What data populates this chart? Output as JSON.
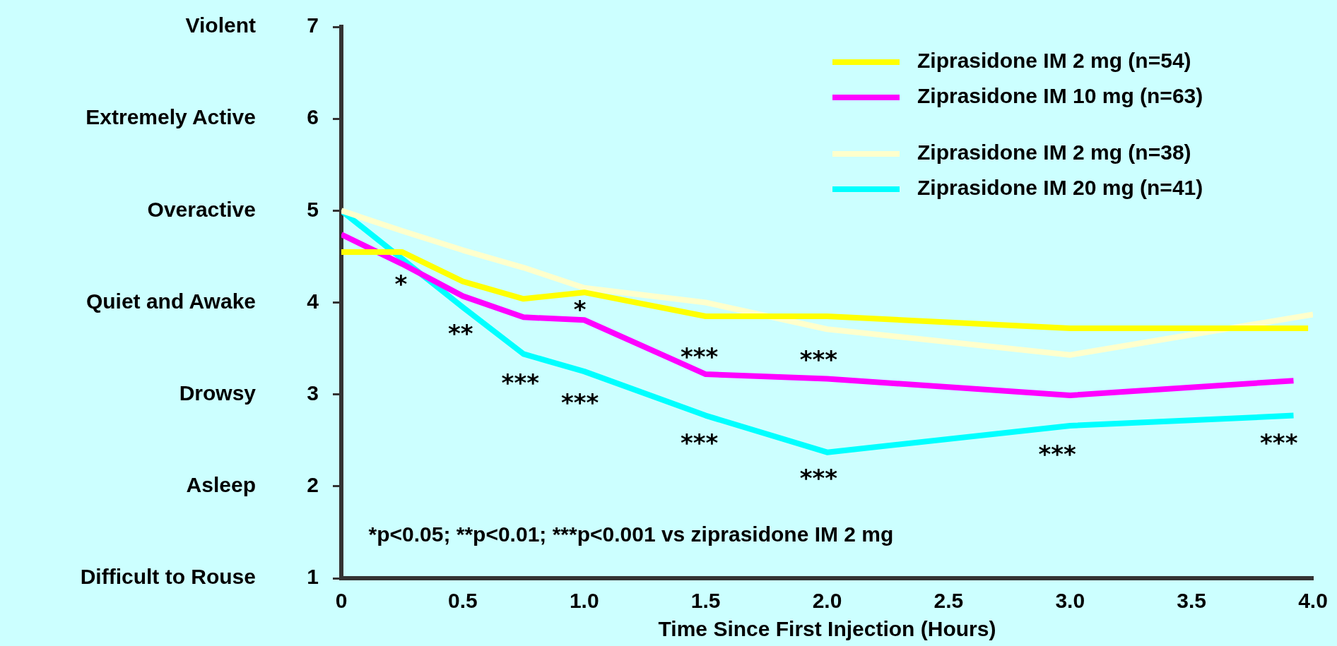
{
  "chart_data": {
    "type": "line",
    "xlabel": "Time Since First Injection (Hours)",
    "xlim": [
      0,
      4
    ],
    "xticks": [
      0,
      0.5,
      {
        "value": 1,
        "label": "1.0"
      },
      1.5,
      {
        "value": 2,
        "label": "2.0"
      },
      2.5,
      {
        "value": 3,
        "label": "3.0"
      },
      3.5,
      {
        "value": 4,
        "label": "4.0"
      }
    ],
    "ylim": [
      1,
      7
    ],
    "yticks": [
      1,
      2,
      3,
      4,
      5,
      6,
      7
    ],
    "grid": false,
    "legend": "top right",
    "marker": "none",
    "line_style": "solid",
    "series": [
      {
        "name": "Ziprasidone IM 2 mg (n=54)",
        "color": "#ffff00",
        "x": [
          0,
          0.25,
          0.5,
          0.75,
          1,
          1.5,
          2,
          3,
          3.98
        ],
        "values": [
          4.55,
          4.55,
          4.23,
          4.04,
          4.11,
          3.85,
          3.85,
          3.72,
          3.72
        ]
      },
      {
        "name": "Ziprasidone IM 10 mg (n=63)",
        "color": "#ff00ff",
        "x": [
          0,
          0.25,
          0.5,
          0.75,
          1,
          1.5,
          2,
          3,
          3.92
        ],
        "values": [
          4.74,
          4.42,
          4.07,
          3.84,
          3.81,
          3.22,
          3.17,
          2.99,
          3.15
        ]
      },
      {
        "name": "Ziprasidone IM 2 mg (n=38)",
        "color": "#ffffcc",
        "x": [
          0,
          0.25,
          0.5,
          0.75,
          1,
          1.5,
          2,
          3,
          4
        ],
        "values": [
          5.0,
          4.78,
          4.57,
          4.38,
          4.16,
          4.0,
          3.71,
          3.43,
          3.87
        ]
      },
      {
        "name": "Ziprasidone IM 20 mg (n=41)",
        "color": "#00ffff",
        "x": [
          0,
          0.5,
          0.75,
          1,
          1.5,
          2,
          3,
          3.92
        ],
        "values": [
          5.0,
          3.95,
          3.44,
          3.25,
          2.77,
          2.37,
          2.66,
          2.77
        ]
      }
    ],
    "annotations": [
      "Violent",
      "Extremely Active",
      "Overactive",
      "Quiet and Awake",
      "Drowsy",
      "Asleep",
      "Difficult to Rouse",
      "*",
      "**",
      "***",
      "*",
      "***",
      "***",
      "***",
      "***",
      "***",
      "***",
      "***",
      "*p<0.05; **p<0.01; ***p<0.001 vs ziprasidone IM 2 mg"
    ]
  }
}
